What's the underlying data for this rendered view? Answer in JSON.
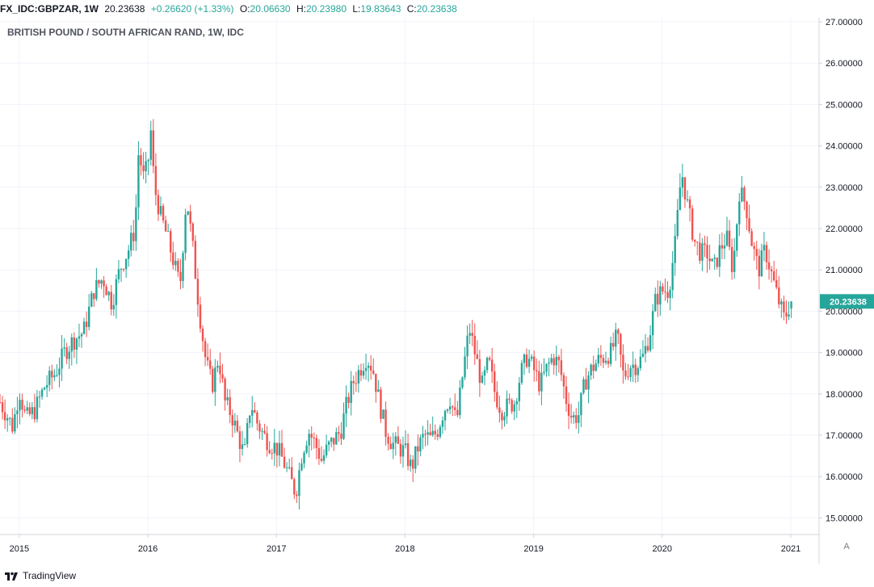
{
  "header": {
    "symbol": "FX_IDC:GBPZAR, 1W",
    "last": "20.23638",
    "change": "+0.26620 (+1.33%)",
    "o_label": "O:",
    "o_value": "20.06630",
    "h_label": "H:",
    "h_value": "20.23980",
    "l_label": "L:",
    "l_value": "19.83643",
    "c_label": "C:",
    "c_value": "20.23638"
  },
  "colors": {
    "up": "#26a69a",
    "down": "#ef5350",
    "grid": "#f0f3fa",
    "axis": "#d1d4dc"
  },
  "footer": {
    "brand": "TradingView",
    "auto_label": "A"
  },
  "chart_data": {
    "type": "candlestick",
    "title": "BRITISH POUND / SOUTH AFRICAN RAND, 1W, IDC",
    "interval": "1W",
    "ylim": [
      14.5,
      27.0
    ],
    "xlim": [
      2014.85,
      2021.22
    ],
    "y_ticks": [
      "27.00000",
      "26.00000",
      "25.00000",
      "24.00000",
      "23.00000",
      "22.00000",
      "21.00000",
      "20.00000",
      "19.00000",
      "18.00000",
      "17.00000",
      "16.00000",
      "15.00000"
    ],
    "x_ticks": [
      "2015",
      "2016",
      "2017",
      "2018",
      "2019",
      "2020",
      "2021"
    ],
    "last_price_label": "20.23638",
    "grid": true,
    "anchor_series": {
      "t": [
        2014.85,
        2014.9,
        2014.95,
        2015.0,
        2015.05,
        2015.12,
        2015.2,
        2015.28,
        2015.35,
        2015.42,
        2015.5,
        2015.58,
        2015.65,
        2015.72,
        2015.78,
        2015.85,
        2015.9,
        2015.93,
        2015.96,
        2016.0,
        2016.02,
        2016.05,
        2016.1,
        2016.15,
        2016.2,
        2016.25,
        2016.3,
        2016.35,
        2016.4,
        2016.45,
        2016.5,
        2016.55,
        2016.6,
        2016.65,
        2016.7,
        2016.75,
        2016.8,
        2016.85,
        2016.9,
        2016.95,
        2017.0,
        2017.05,
        2017.1,
        2017.15,
        2017.2,
        2017.25,
        2017.3,
        2017.35,
        2017.4,
        2017.45,
        2017.5,
        2017.55,
        2017.6,
        2017.65,
        2017.7,
        2017.75,
        2017.8,
        2017.85,
        2017.9,
        2017.95,
        2018.0,
        2018.05,
        2018.1,
        2018.15,
        2018.2,
        2018.25,
        2018.3,
        2018.35,
        2018.4,
        2018.45,
        2018.5,
        2018.55,
        2018.6,
        2018.65,
        2018.7,
        2018.75,
        2018.8,
        2018.85,
        2018.9,
        2018.95,
        2019.0,
        2019.05,
        2019.1,
        2019.15,
        2019.2,
        2019.25,
        2019.3,
        2019.35,
        2019.4,
        2019.45,
        2019.5,
        2019.55,
        2019.6,
        2019.65,
        2019.7,
        2019.75,
        2019.8,
        2019.85,
        2019.9,
        2019.95,
        2020.0,
        2020.05,
        2020.1,
        2020.15,
        2020.2,
        2020.25,
        2020.3,
        2020.35,
        2020.4,
        2020.45,
        2020.5,
        2020.55,
        2020.6,
        2020.65,
        2020.7,
        2020.75,
        2020.8,
        2020.85,
        2020.9,
        2020.95,
        2021.0
      ],
      "close": [
        17.8,
        17.5,
        17.2,
        18.1,
        17.4,
        17.6,
        18.2,
        18.5,
        19.0,
        19.3,
        19.5,
        20.5,
        20.8,
        20.2,
        21.0,
        21.5,
        22.0,
        24.0,
        23.2,
        23.5,
        24.5,
        23.0,
        22.3,
        21.8,
        21.2,
        20.6,
        22.8,
        21.5,
        20.0,
        18.8,
        18.2,
        18.9,
        17.8,
        17.5,
        17.0,
        16.5,
        17.8,
        17.3,
        17.0,
        16.8,
        16.7,
        16.4,
        16.0,
        15.6,
        16.6,
        17.1,
        16.8,
        16.4,
        16.7,
        16.9,
        17.1,
        17.8,
        18.3,
        18.6,
        18.9,
        18.6,
        17.8,
        17.1,
        16.8,
        16.7,
        16.6,
        16.2,
        16.7,
        17.0,
        16.9,
        17.1,
        17.6,
        17.9,
        17.3,
        18.5,
        19.6,
        18.9,
        18.2,
        18.8,
        18.0,
        17.6,
        17.7,
        17.8,
        18.5,
        18.9,
        18.6,
        18.2,
        18.6,
        18.9,
        18.7,
        17.9,
        17.4,
        17.5,
        18.3,
        18.6,
        18.8,
        18.9,
        19.0,
        19.4,
        18.4,
        18.7,
        18.7,
        18.9,
        19.4,
        20.3,
        20.5,
        20.5,
        21.6,
        23.4,
        22.5,
        21.7,
        21.4,
        21.4,
        21.0,
        21.5,
        21.8,
        21.0,
        22.9,
        22.6,
        21.6,
        21.0,
        21.5,
        20.9,
        20.3,
        19.8,
        20.24
      ]
    }
  }
}
